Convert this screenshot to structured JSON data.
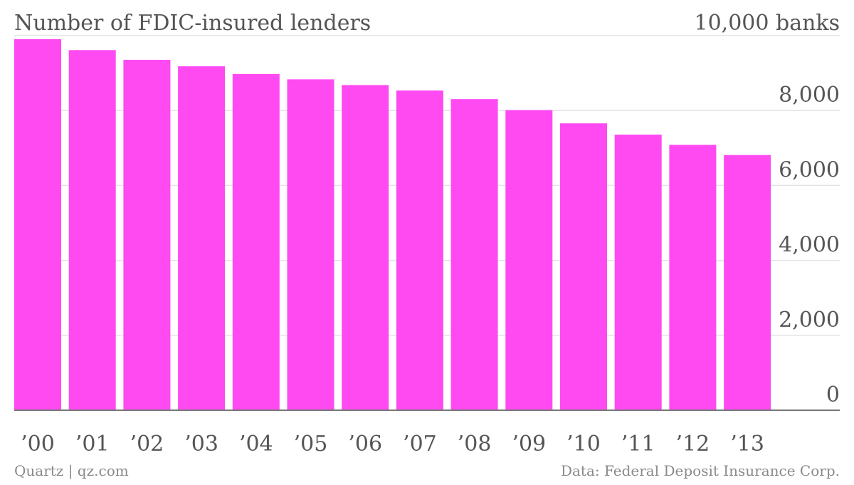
{
  "chart_data": {
    "type": "bar",
    "title": "Number of FDIC-insured lenders",
    "categories": [
      "’00",
      "’01",
      "’02",
      "’03",
      "’04",
      "’05",
      "’06",
      "’07",
      "’08",
      "’09",
      "’10",
      "’11",
      "’12",
      "’13"
    ],
    "values": [
      9904,
      9614,
      9354,
      9181,
      8976,
      8833,
      8680,
      8534,
      8305,
      8012,
      7658,
      7357,
      7083,
      6812
    ],
    "ylim": [
      0,
      10000
    ],
    "y_ticks": [
      0,
      2000,
      4000,
      6000,
      8000,
      10000
    ],
    "y_tick_labels": [
      "0",
      "2,000",
      "4,000",
      "6,000",
      "8,000",
      "10,000 banks"
    ],
    "y_axis_position": "right",
    "grid": true,
    "legend": "none",
    "bar_color": "#ff4af2",
    "source": "Data: Federal Deposit Insurance Corp.",
    "credit": "Quartz | qz.com"
  }
}
